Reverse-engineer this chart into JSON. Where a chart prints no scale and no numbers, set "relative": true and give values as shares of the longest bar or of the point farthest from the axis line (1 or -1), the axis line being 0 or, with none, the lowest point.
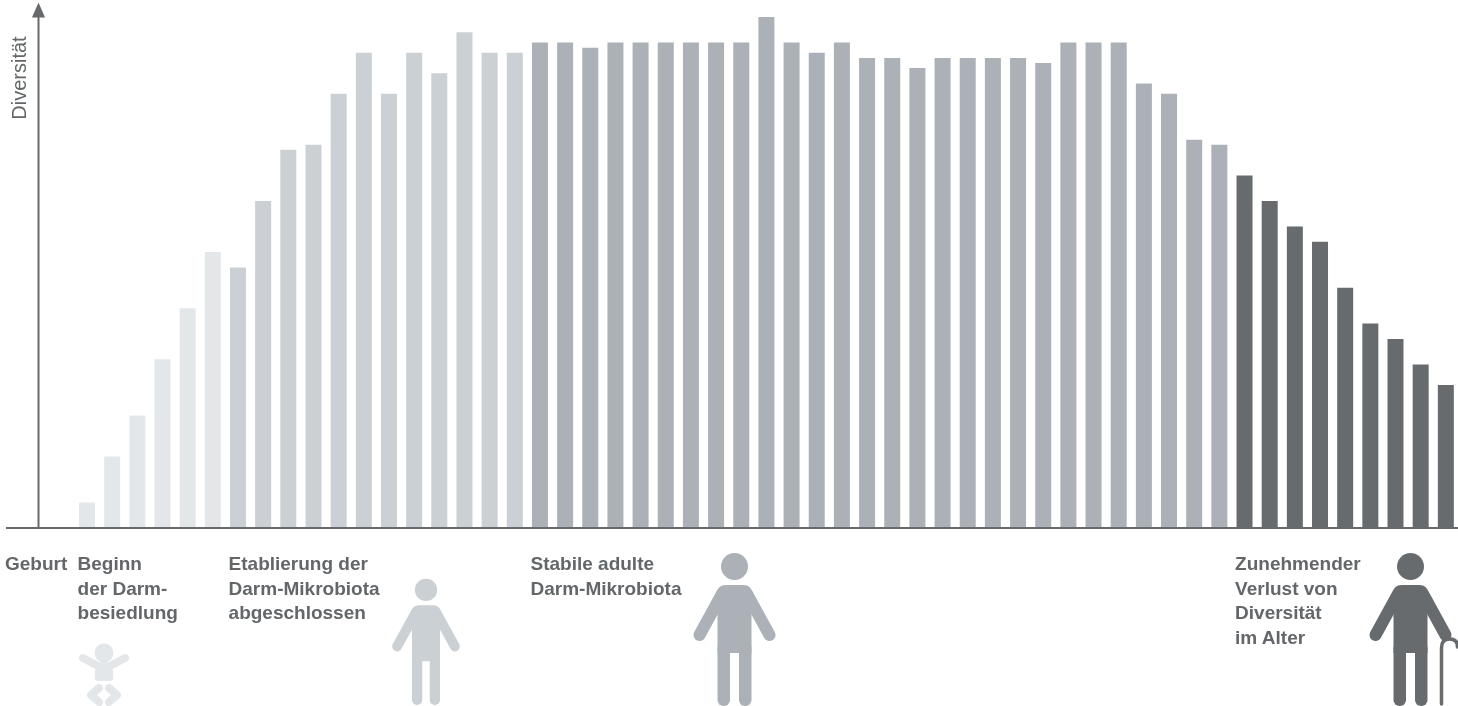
{
  "chart_data": {
    "type": "bar",
    "relative": true,
    "ylabel": "Diversität",
    "categories": [
      null,
      null,
      null,
      null,
      null,
      null,
      null,
      null,
      null,
      null,
      null,
      null,
      null,
      null,
      null,
      null,
      null,
      null,
      null,
      null,
      null,
      null,
      null,
      null,
      null,
      null,
      null,
      null,
      null,
      null,
      null,
      null,
      null,
      null,
      null,
      null,
      null,
      null,
      null,
      null,
      null,
      null,
      null,
      null,
      null,
      null,
      null,
      null,
      null,
      null,
      null,
      null,
      null,
      null,
      null
    ],
    "values": [
      0.05,
      0.14,
      0.22,
      0.33,
      0.43,
      0.54,
      0.51,
      0.64,
      0.74,
      0.75,
      0.85,
      0.93,
      0.85,
      0.93,
      0.89,
      0.97,
      0.93,
      0.93,
      0.95,
      0.95,
      0.94,
      0.95,
      0.95,
      0.95,
      0.95,
      0.95,
      0.95,
      1,
      0.95,
      0.93,
      0.95,
      0.92,
      0.92,
      0.9,
      0.92,
      0.92,
      0.92,
      0.92,
      0.91,
      0.95,
      0.95,
      0.95,
      0.87,
      0.85,
      0.76,
      0.75,
      0.69,
      0.64,
      0.59,
      0.56,
      0.47,
      0.4,
      0.37,
      0.32,
      0.28
    ],
    "colors": [
      "#e4e7ea",
      "#e4e7ea",
      "#e4e7ea",
      "#e4e7ea",
      "#e4e7ea",
      "#e4e7ea",
      "#cbd0d4",
      "#cbd0d4",
      "#cbd0d4",
      "#cbd0d4",
      "#cbd0d4",
      "#cbd0d4",
      "#cbd0d4",
      "#cbd0d4",
      "#cbd0d4",
      "#cbd0d4",
      "#cbd0d4",
      "#cbd0d4",
      "#abb1b7",
      "#abb1b7",
      "#abb1b7",
      "#abb1b7",
      "#abb1b7",
      "#abb1b7",
      "#abb1b7",
      "#abb1b7",
      "#abb1b7",
      "#abb1b7",
      "#abb1b7",
      "#abb1b7",
      "#abb1b7",
      "#abb1b7",
      "#abb1b7",
      "#abb1b7",
      "#abb1b7",
      "#abb1b7",
      "#abb1b7",
      "#abb1b7",
      "#abb1b7",
      "#abb1b7",
      "#abb1b7",
      "#abb1b7",
      "#abb1b7",
      "#abb1b7",
      "#abb1b7",
      "#abb1b7",
      "#676b6e",
      "#676b6e",
      "#676b6e",
      "#676b6e",
      "#676b6e",
      "#676b6e",
      "#676b6e",
      "#676b6e",
      "#676b6e"
    ],
    "annotations": [
      "Geburt",
      "Beginn\nder Darm-\nbesiedlung",
      "Etablierung der\nDarm-Mikrobiota\nabgeschlossen",
      "Stabile adulte\nDarm-Mikrobiota",
      "Zunehmender\nVerlust von\nDiversität\nim Alter"
    ]
  }
}
